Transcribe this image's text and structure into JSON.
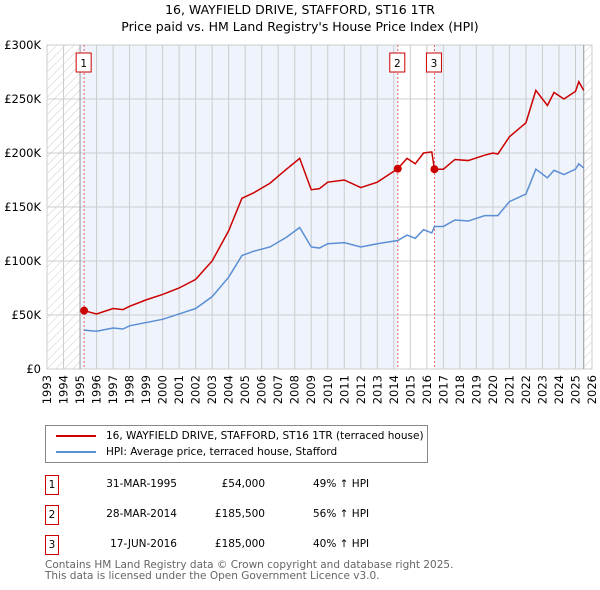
{
  "chart_data": {
    "type": "line",
    "title": "16, WAYFIELD DRIVE, STAFFORD, ST16 1TR",
    "subtitle": "Price paid vs. HM Land Registry's House Price Index (HPI)",
    "xlim": [
      1993,
      2026
    ],
    "ylim": [
      0,
      300000
    ],
    "x_ticks": [
      "1993",
      "1994",
      "1995",
      "1996",
      "1997",
      "1998",
      "1999",
      "2000",
      "2001",
      "2002",
      "2003",
      "2004",
      "2005",
      "2006",
      "2007",
      "2008",
      "2009",
      "2010",
      "2011",
      "2012",
      "2013",
      "2014",
      "2015",
      "2016",
      "2017",
      "2018",
      "2019",
      "2020",
      "2021",
      "2022",
      "2023",
      "2024",
      "2025",
      "2026"
    ],
    "y_ticks": [
      {
        "v": 0,
        "label": "£0"
      },
      {
        "v": 50000,
        "label": "£50K"
      },
      {
        "v": 100000,
        "label": "£100K"
      },
      {
        "v": 150000,
        "label": "£150K"
      },
      {
        "v": 200000,
        "label": "£200K"
      },
      {
        "v": 250000,
        "label": "£250K"
      },
      {
        "v": 300000,
        "label": "£300K"
      }
    ],
    "grid": true,
    "series": [
      {
        "name": "16, WAYFIELD DRIVE, STAFFORD, ST16 1TR (terraced house)",
        "color": "#cc0000",
        "x": [
          1995.25,
          1996,
          1997,
          1997.6,
          1998,
          1999,
          2000,
          2001,
          2002,
          2003,
          2004,
          2004.8,
          2005.5,
          2006.5,
          2007.5,
          2008.3,
          2009,
          2009.5,
          2010,
          2011,
          2012,
          2013,
          2014.24,
          2014.8,
          2015.3,
          2015.8,
          2016.3,
          2016.46,
          2017,
          2017.7,
          2018.5,
          2019.5,
          2020,
          2020.3,
          2021,
          2022,
          2022.6,
          2023.3,
          2023.7,
          2024.3,
          2025,
          2025.2,
          2025.5
        ],
        "y": [
          54000,
          51000,
          56000,
          55000,
          58000,
          64000,
          69000,
          75000,
          83000,
          100000,
          128000,
          158000,
          163000,
          172000,
          185000,
          195000,
          166000,
          167000,
          173000,
          175000,
          168000,
          173000,
          185500,
          195000,
          190000,
          200000,
          201000,
          185000,
          185000,
          194000,
          193000,
          198000,
          200000,
          199000,
          215000,
          228000,
          258000,
          244000,
          256000,
          250000,
          257000,
          266000,
          258000
        ]
      },
      {
        "name": "HPI: Average price, terraced house, Stafford",
        "color": "#5b8fd4",
        "x": [
          1995.25,
          1996,
          1997,
          1997.6,
          1998,
          1999,
          2000,
          2001,
          2002,
          2003,
          2004,
          2004.8,
          2005.5,
          2006.5,
          2007.5,
          2008.3,
          2009,
          2009.5,
          2010,
          2011,
          2012,
          2013,
          2014.24,
          2014.8,
          2015.3,
          2015.8,
          2016.3,
          2016.46,
          2017,
          2017.7,
          2018.5,
          2019.5,
          2020,
          2020.3,
          2021,
          2022,
          2022.6,
          2023.3,
          2023.7,
          2024.3,
          2025,
          2025.2,
          2025.5
        ],
        "y": [
          36000,
          35000,
          38000,
          37000,
          40000,
          43000,
          46000,
          51000,
          56000,
          67000,
          85000,
          105000,
          109000,
          113000,
          122000,
          131000,
          113000,
          112000,
          116000,
          117000,
          113000,
          116000,
          119000,
          124000,
          121000,
          129000,
          126000,
          132000,
          132000,
          138000,
          137000,
          142000,
          142000,
          142000,
          155000,
          162000,
          185000,
          177000,
          184000,
          180000,
          185000,
          190000,
          186000
        ]
      }
    ],
    "sales": [
      {
        "n": "1",
        "x": 1995.25,
        "y": 54000
      },
      {
        "n": "2",
        "x": 2014.24,
        "y": 185500
      },
      {
        "n": "3",
        "x": 2016.46,
        "y": 185000
      }
    ],
    "data_start": 1995.0,
    "data_end": 2025.5
  },
  "legend": {
    "property": "16, WAYFIELD DRIVE, STAFFORD, ST16 1TR (terraced house)",
    "hpi": "HPI: Average price, terraced house, Stafford"
  },
  "transactions": [
    {
      "n": "1",
      "date": "31-MAR-1995",
      "price": "£54,000",
      "hpi": "49% ↑ HPI"
    },
    {
      "n": "2",
      "date": "28-MAR-2014",
      "price": "£185,500",
      "hpi": "56% ↑ HPI"
    },
    {
      "n": "3",
      "date": "17-JUN-2016",
      "price": "£185,000",
      "hpi": "40% ↑ HPI"
    }
  ],
  "footer": {
    "line1": "Contains HM Land Registry data © Crown copyright and database right 2025.",
    "line2": "This data is licensed under the Open Government Licence v3.0."
  }
}
